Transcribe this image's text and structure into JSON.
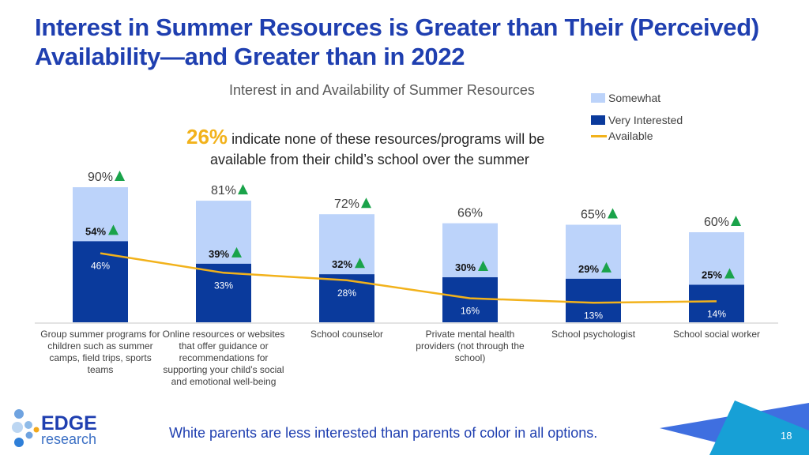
{
  "title": "Interest in Summer Resources is Greater than Their (Perceived) Availability—and Greater than in 2022",
  "footer": "White parents are less interested than parents of color in all options.",
  "page_number": "18",
  "logo": {
    "word1": "EDGE",
    "word2": "research"
  },
  "callout": {
    "value": "26%",
    "text1": "indicate none of these resources/programs will be",
    "text2": "available from their child’s school over the summer"
  },
  "colors": {
    "somewhat": "#bcd3fa",
    "very": "#0a3a9c",
    "available": "#f2b21b",
    "up_arrow": "#1aa34a",
    "title": "#1f3fb0"
  },
  "chart_data": {
    "type": "bar",
    "title": "Interest in and Availability of Summer Resources",
    "stacked": true,
    "legend_position": "top-right",
    "legend": [
      "Somewhat",
      "Very Interested",
      "Available"
    ],
    "categories": [
      "Group summer programs for children such as summer camps, field trips, sports teams",
      "Online resources or websites that offer guidance or recommendations for supporting your child’s social and emotional well-being",
      "School counselor",
      "Private mental health providers (not through the school)",
      "School psychologist",
      "School social worker"
    ],
    "total_interested": [
      90,
      81,
      72,
      66,
      65,
      60
    ],
    "total_labels": [
      "90%",
      "81%",
      "72%",
      "66%",
      "65%",
      "60%"
    ],
    "total_up": [
      true,
      true,
      true,
      false,
      true,
      true
    ],
    "series": [
      {
        "name": "Very Interested",
        "values": [
          54,
          39,
          32,
          30,
          29,
          25
        ],
        "labels": [
          "54%",
          "39%",
          "32%",
          "30%",
          "29%",
          "25%"
        ],
        "up": [
          true,
          true,
          true,
          true,
          true,
          true
        ]
      },
      {
        "name": "Somewhat",
        "values": [
          36,
          42,
          40,
          36,
          36,
          35
        ]
      },
      {
        "name": "Available",
        "type": "line",
        "values": [
          46,
          33,
          28,
          16,
          13,
          14
        ],
        "labels": [
          "46%",
          "33%",
          "28%",
          "16%",
          "13%",
          "14%"
        ]
      }
    ],
    "ylim": [
      0,
      100
    ],
    "grid": false
  }
}
